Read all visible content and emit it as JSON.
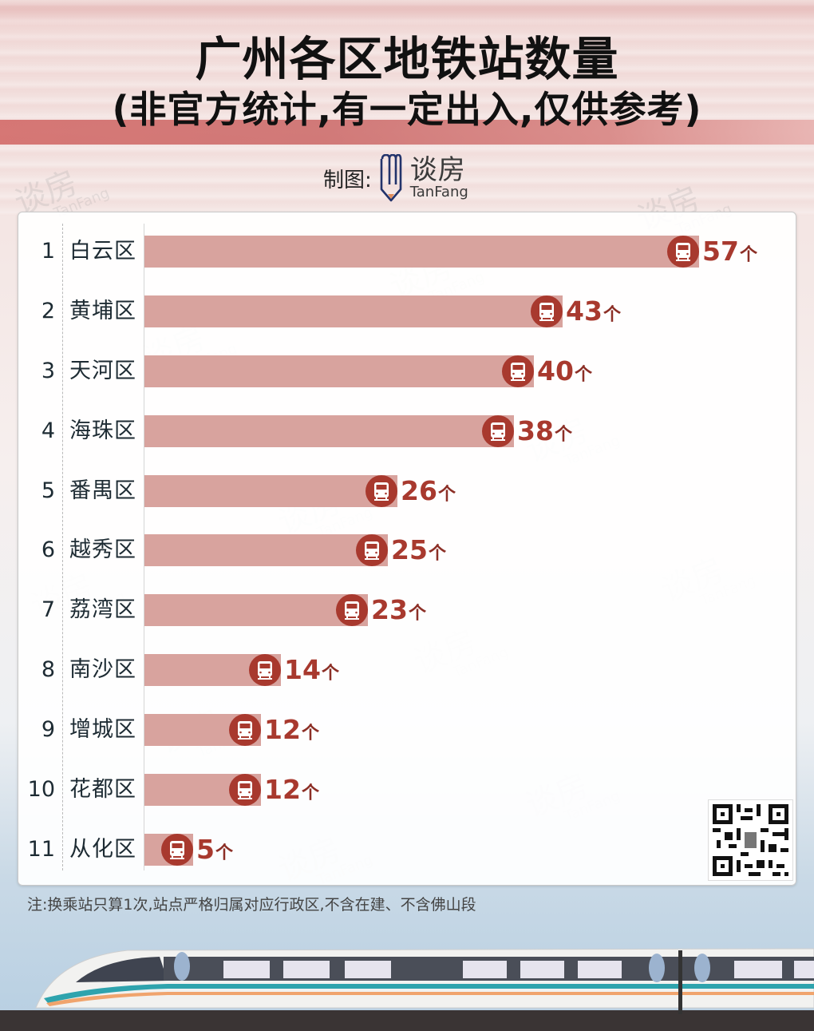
{
  "header": {
    "title": "广州各区地铁站数量",
    "subtitle": "(非官方统计,有一定出入,仅供参考)",
    "credit_label": "制图:",
    "brand_cn": "谈房",
    "brand_en": "TanFang"
  },
  "colors": {
    "bar": "#d8a39e",
    "value_text": "#a8392e",
    "icon_fill": "#a8392e",
    "band": "#d4716f"
  },
  "chart_data": {
    "type": "bar",
    "orientation": "horizontal",
    "title": "广州各区地铁站数量",
    "subtitle": "(非官方统计,有一定出入,仅供参考)",
    "xlabel": "",
    "ylabel": "",
    "unit": "个",
    "grid": false,
    "legend": null,
    "categories": [
      "白云区",
      "黄埔区",
      "天河区",
      "海珠区",
      "番禺区",
      "越秀区",
      "荔湾区",
      "南沙区",
      "增城区",
      "花都区",
      "从化区"
    ],
    "ranks": [
      1,
      2,
      3,
      4,
      5,
      6,
      7,
      8,
      9,
      10,
      11
    ],
    "values": [
      57,
      43,
      40,
      38,
      26,
      25,
      23,
      14,
      12,
      12,
      5
    ],
    "xlim": [
      0,
      57
    ]
  },
  "rows": [
    {
      "rank": "1",
      "name": "白云区",
      "value": "57",
      "unit": "个"
    },
    {
      "rank": "2",
      "name": "黄埔区",
      "value": "43",
      "unit": "个"
    },
    {
      "rank": "3",
      "name": "天河区",
      "value": "40",
      "unit": "个"
    },
    {
      "rank": "4",
      "name": "海珠区",
      "value": "38",
      "unit": "个"
    },
    {
      "rank": "5",
      "name": "番禺区",
      "value": "26",
      "unit": "个"
    },
    {
      "rank": "6",
      "name": "越秀区",
      "value": "25",
      "unit": "个"
    },
    {
      "rank": "7",
      "name": "荔湾区",
      "value": "23",
      "unit": "个"
    },
    {
      "rank": "8",
      "name": "南沙区",
      "value": "14",
      "unit": "个"
    },
    {
      "rank": "9",
      "name": "增城区",
      "value": "12",
      "unit": "个"
    },
    {
      "rank": "10",
      "name": "花都区",
      "value": "12",
      "unit": "个"
    },
    {
      "rank": "11",
      "name": "从化区",
      "value": "5",
      "unit": "个"
    }
  ],
  "icons": {
    "row_icon": "train-icon",
    "brand_icon": "tanfang-logo-icon",
    "qr": "qr-code"
  },
  "footer": {
    "note": "注:换乘站只算1次,站点严格归属对应行政区,不含在建、不含佛山段"
  },
  "watermark": {
    "cn": "谈房",
    "en": "TanFang"
  }
}
